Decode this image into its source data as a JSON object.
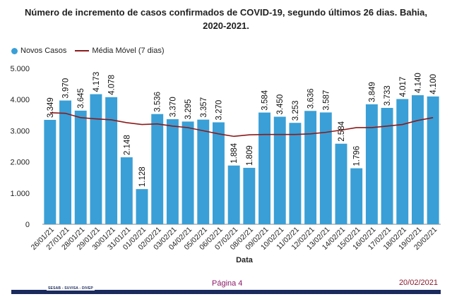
{
  "title": "Número de incremento de casos confirmados de COVID-19, segundo últimos 26 dias.  Bahia, 2020-2021.",
  "footer": {
    "page": "Página 4",
    "date": "20/02/2021",
    "agency": "SESAB - SUVISA - DIVEP"
  },
  "colors": {
    "bars": "#3a9fd6",
    "moving_average": "#8b1a1a",
    "footer_bar": "#1b2a5c"
  },
  "chart_data": {
    "type": "bar",
    "title": "Número de incremento de casos confirmados de COVID-19, segundo últimos 26 dias.  Bahia, 2020-2021.",
    "xlabel": "Data",
    "ylabel": "",
    "ylim": [
      0,
      5000
    ],
    "yticks": [
      0,
      1000,
      2000,
      3000,
      4000,
      5000
    ],
    "ytick_labels": [
      "0",
      "1.000",
      "2.000",
      "3.000",
      "4.000",
      "5.000"
    ],
    "grid": false,
    "legend_position": "top-left",
    "categories": [
      "26/01/21",
      "27/01/21",
      "28/01/21",
      "29/01/21",
      "30/01/21",
      "31/01/21",
      "01/02/21",
      "02/02/21",
      "03/02/21",
      "04/02/21",
      "05/02/21",
      "06/02/21",
      "07/02/21",
      "08/02/21",
      "09/02/21",
      "10/02/21",
      "11/02/21",
      "12/02/21",
      "13/02/21",
      "14/02/21",
      "15/02/21",
      "16/02/21",
      "17/02/21",
      "18/02/21",
      "19/02/21",
      "20/02/21"
    ],
    "series": [
      {
        "name": "Novos Casos",
        "kind": "bar",
        "values": [
          3349,
          3970,
          3645,
          4173,
          4078,
          2148,
          1128,
          3536,
          3370,
          3295,
          3357,
          3270,
          1884,
          1809,
          3584,
          3450,
          3253,
          3636,
          3587,
          2584,
          1796,
          3849,
          3733,
          4017,
          4140,
          4100
        ],
        "labels": [
          "3.349",
          "3.970",
          "3.645",
          "4.173",
          "4.078",
          "2.148",
          "1.128",
          "3.536",
          "3.370",
          "3.295",
          "3.357",
          "3.270",
          "1.884",
          "1.809",
          "3.584",
          "3.450",
          "3.253",
          "3.636",
          "3.587",
          "2.584",
          "1.796",
          "3.849",
          "3.733",
          "4.017",
          "4.140",
          "4.100"
        ]
      },
      {
        "name": "Média Móvel (7 dias)",
        "kind": "line",
        "values": [
          3580,
          3560,
          3420,
          3380,
          3350,
          3260,
          3200,
          3220,
          3150,
          3100,
          3000,
          2900,
          2820,
          2870,
          2880,
          2880,
          2880,
          2900,
          2950,
          3020,
          3100,
          3100,
          3150,
          3200,
          3330,
          3420
        ]
      }
    ]
  }
}
